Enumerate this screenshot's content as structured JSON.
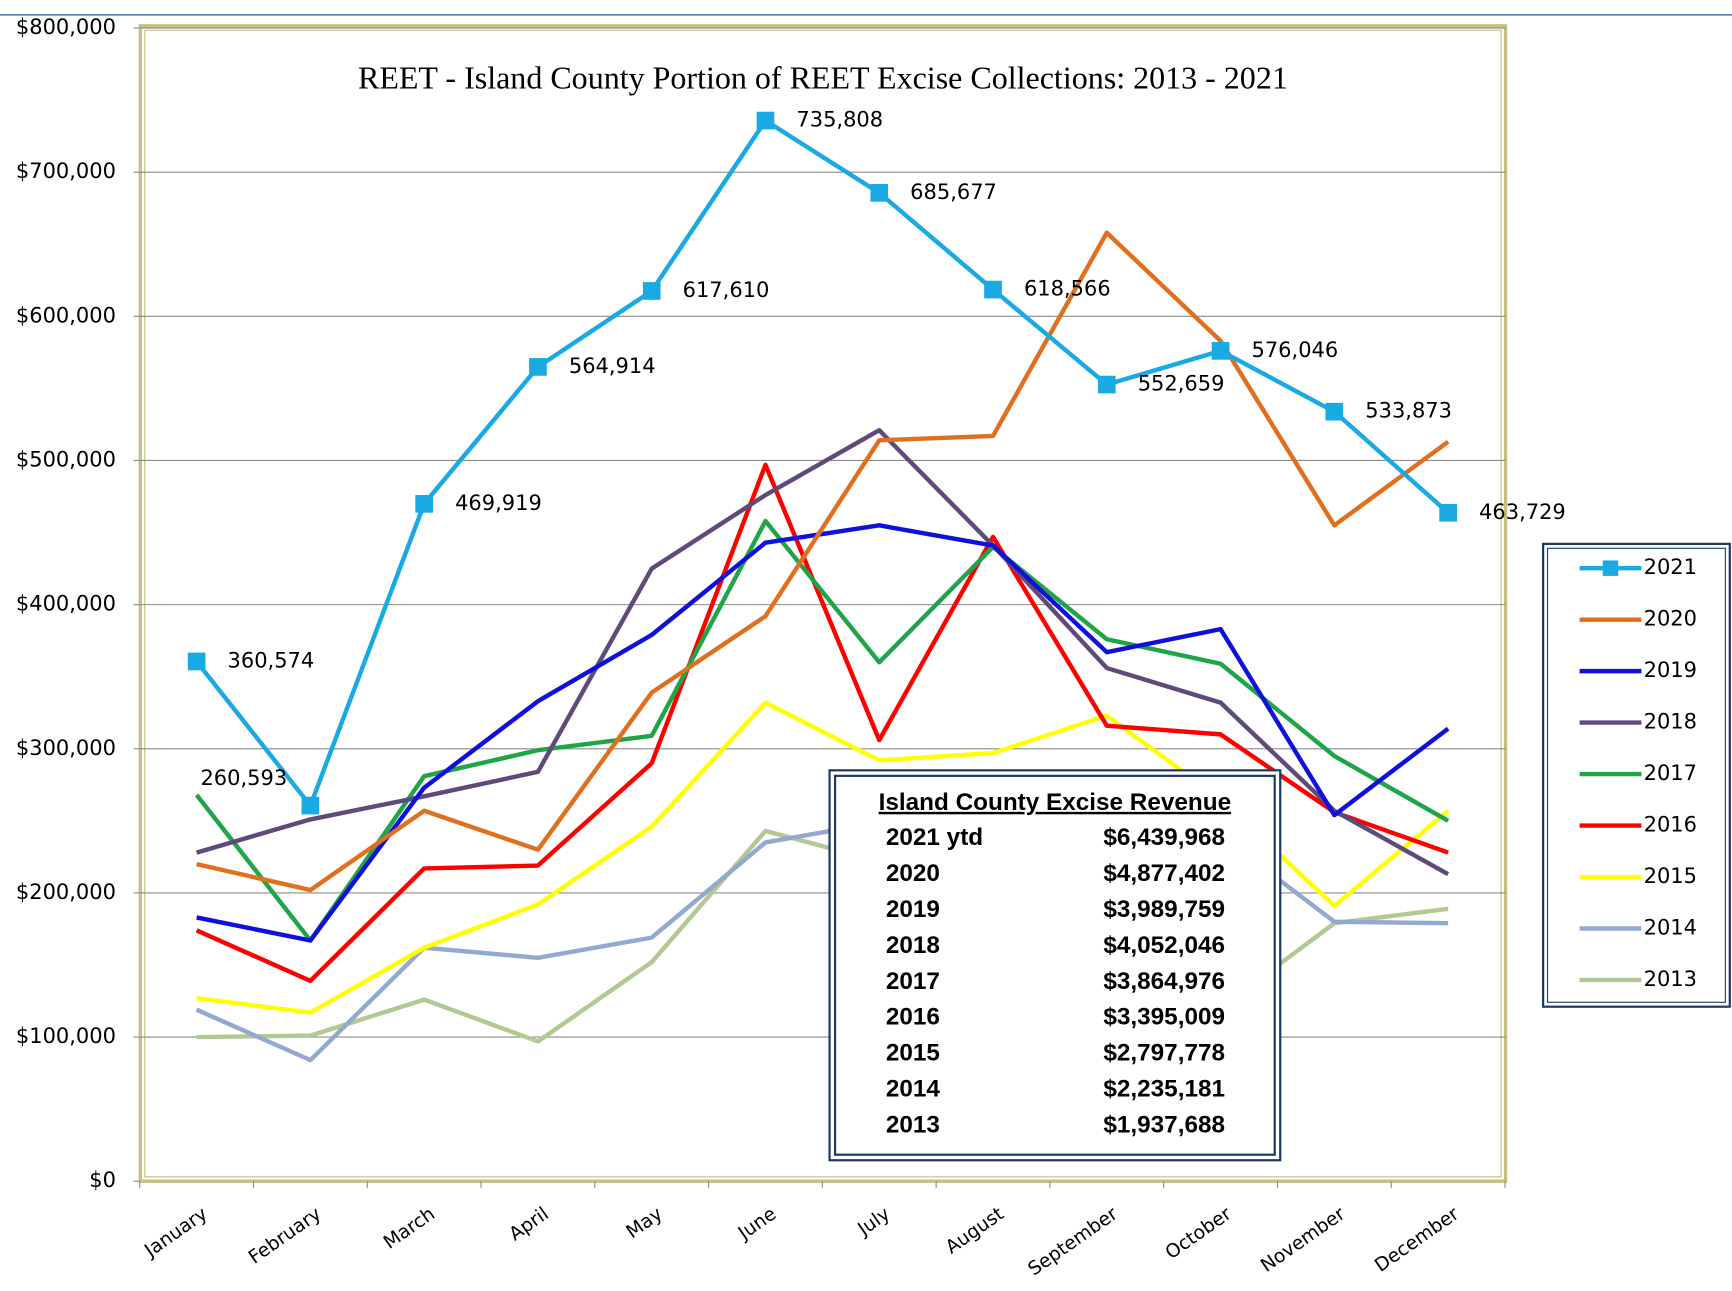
{
  "chart_data": {
    "type": "line",
    "title": "REET  - Island County Portion of REET Excise Collections: 2013 - 2021",
    "categories": [
      "January",
      "February",
      "March",
      "April",
      "May",
      "June",
      "July",
      "August",
      "September",
      "October",
      "November",
      "December"
    ],
    "ylim": [
      0,
      800000
    ],
    "yticks": [
      {
        "value": 0,
        "label": "$0"
      },
      {
        "value": 100000,
        "label": "$100,000"
      },
      {
        "value": 200000,
        "label": "$200,000"
      },
      {
        "value": 300000,
        "label": "$300,000"
      },
      {
        "value": 400000,
        "label": "$400,000"
      },
      {
        "value": 500000,
        "label": "$500,000"
      },
      {
        "value": 600000,
        "label": "$600,000"
      },
      {
        "value": 700000,
        "label": "$700,000"
      },
      {
        "value": 800000,
        "label": "$800,000"
      }
    ],
    "grid": true,
    "legend": "right",
    "series": [
      {
        "name": "2021",
        "color": "#19a9e3",
        "marker": "square",
        "values": [
          360574,
          260593,
          469919,
          564914,
          617610,
          735808,
          685677,
          618566,
          552659,
          576046,
          533873,
          463729
        ],
        "value_labels": [
          "360,574",
          "260,593",
          "469,919",
          "564,914",
          "617,610",
          "735,808",
          "685,677",
          "618,566",
          "552,659",
          "576,046",
          "533,873",
          "463,729"
        ]
      },
      {
        "name": "2020",
        "color": "#e0701f",
        "values": [
          220000,
          202000,
          257000,
          230000,
          339000,
          392000,
          514000,
          517000,
          658000,
          583000,
          455000,
          513000
        ]
      },
      {
        "name": "2019",
        "color": "#1010dd",
        "values": [
          183000,
          167000,
          273000,
          333000,
          379000,
          443000,
          455000,
          441000,
          367000,
          383000,
          254000,
          314000
        ]
      },
      {
        "name": "2018",
        "color": "#604a7b",
        "values": [
          228000,
          251000,
          267000,
          284000,
          425000,
          476000,
          521000,
          441000,
          356000,
          332000,
          257000,
          213000
        ]
      },
      {
        "name": "2017",
        "color": "#1fa548",
        "values": [
          268000,
          167000,
          281000,
          299000,
          309000,
          458000,
          360000,
          440000,
          376000,
          359000,
          295000,
          250000
        ]
      },
      {
        "name": "2016",
        "color": "#ff0000",
        "values": [
          174000,
          139000,
          217000,
          219000,
          290000,
          497000,
          306000,
          447000,
          316000,
          310000,
          256000,
          228000
        ]
      },
      {
        "name": "2015",
        "color": "#ffff00",
        "values": [
          127000,
          117000,
          162000,
          192000,
          246000,
          332000,
          292000,
          297000,
          323000,
          265000,
          191000,
          257000
        ]
      },
      {
        "name": "2014",
        "color": "#94a9d1",
        "values": [
          119000,
          84000,
          162000,
          155000,
          169000,
          235000,
          249000,
          242000,
          226000,
          240000,
          180000,
          179000
        ]
      },
      {
        "name": "2013",
        "color": "#b3c994",
        "values": [
          100000,
          101000,
          126000,
          97000,
          152000,
          243000,
          222000,
          217000,
          195000,
          120000,
          179000,
          189000
        ]
      }
    ],
    "table": {
      "title": "Island County Excise Revenue",
      "rows": [
        [
          "2021 ytd",
          "$6,439,968"
        ],
        [
          "2020",
          "$4,877,402"
        ],
        [
          "2019",
          "$3,989,759"
        ],
        [
          "2018",
          "$4,052,046"
        ],
        [
          "2017",
          "$3,864,976"
        ],
        [
          "2016",
          "$3,395,009"
        ],
        [
          "2015",
          "$2,797,778"
        ],
        [
          "2014",
          "$2,235,181"
        ],
        [
          "2013",
          "$1,937,688"
        ]
      ]
    }
  }
}
